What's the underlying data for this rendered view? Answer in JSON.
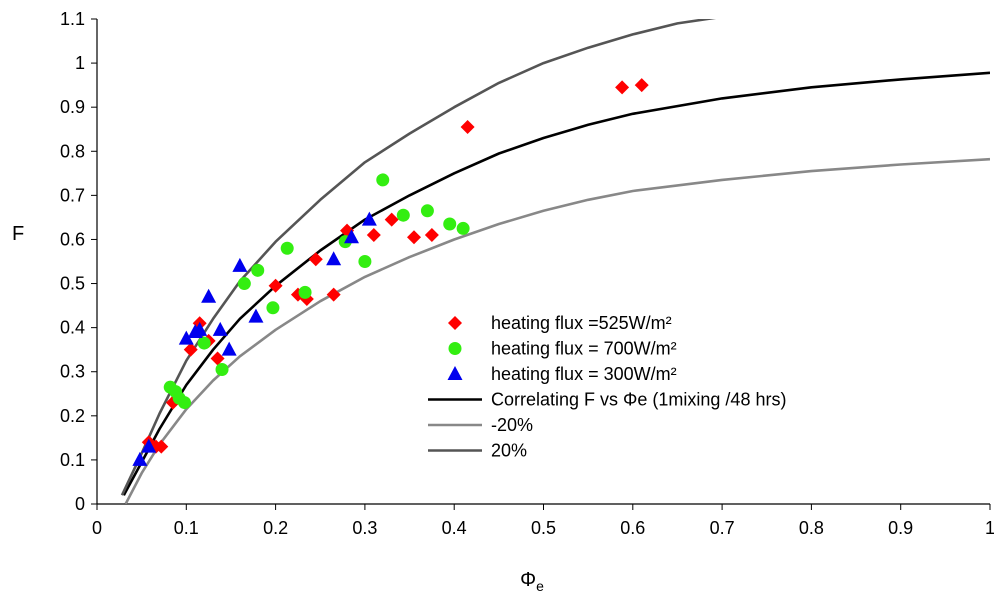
{
  "chart_data": {
    "type": "scatter",
    "title": "",
    "xlabel": "Φ",
    "xlabel_subscript": "e",
    "ylabel": "F",
    "xlim": [
      0,
      1
    ],
    "ylim": [
      0,
      1.1
    ],
    "x_ticks": [
      "0",
      "0.1",
      "0.2",
      "0.3",
      "0.4",
      "0.5",
      "0.6",
      "0.7",
      "0.8",
      "0.9",
      "1"
    ],
    "y_ticks": [
      "0",
      "0.1",
      "0.2",
      "0.3",
      "0.4",
      "0.5",
      "0.6",
      "0.7",
      "0.8",
      "0.9",
      "1",
      "1.1"
    ],
    "grid": false,
    "legend_position": "bottom-right",
    "series": [
      {
        "name": "heating flux =525W/m²",
        "kind": "scatter",
        "marker": "diamond",
        "color": "#ff0000",
        "points": [
          [
            0.058,
            0.14
          ],
          [
            0.066,
            0.13
          ],
          [
            0.072,
            0.13
          ],
          [
            0.085,
            0.23
          ],
          [
            0.09,
            0.24
          ],
          [
            0.105,
            0.35
          ],
          [
            0.115,
            0.41
          ],
          [
            0.125,
            0.37
          ],
          [
            0.135,
            0.33
          ],
          [
            0.2,
            0.495
          ],
          [
            0.225,
            0.475
          ],
          [
            0.235,
            0.465
          ],
          [
            0.245,
            0.555
          ],
          [
            0.265,
            0.475
          ],
          [
            0.28,
            0.62
          ],
          [
            0.31,
            0.61
          ],
          [
            0.33,
            0.645
          ],
          [
            0.355,
            0.605
          ],
          [
            0.375,
            0.61
          ],
          [
            0.415,
            0.855
          ],
          [
            0.588,
            0.945
          ],
          [
            0.61,
            0.95
          ]
        ]
      },
      {
        "name": "heating flux = 700W/m²",
        "kind": "scatter",
        "marker": "circle",
        "color": "#33ee11",
        "points": [
          [
            0.082,
            0.265
          ],
          [
            0.088,
            0.255
          ],
          [
            0.092,
            0.24
          ],
          [
            0.098,
            0.23
          ],
          [
            0.12,
            0.365
          ],
          [
            0.14,
            0.305
          ],
          [
            0.165,
            0.5
          ],
          [
            0.18,
            0.53
          ],
          [
            0.197,
            0.445
          ],
          [
            0.213,
            0.58
          ],
          [
            0.233,
            0.48
          ],
          [
            0.278,
            0.595
          ],
          [
            0.3,
            0.55
          ],
          [
            0.32,
            0.735
          ],
          [
            0.343,
            0.655
          ],
          [
            0.37,
            0.665
          ],
          [
            0.395,
            0.635
          ],
          [
            0.41,
            0.625
          ]
        ]
      },
      {
        "name": "heating flux = 300W/m²",
        "kind": "scatter",
        "marker": "triangle",
        "color": "#0000ee",
        "points": [
          [
            0.048,
            0.1
          ],
          [
            0.058,
            0.13
          ],
          [
            0.1,
            0.375
          ],
          [
            0.11,
            0.39
          ],
          [
            0.115,
            0.395
          ],
          [
            0.125,
            0.47
          ],
          [
            0.138,
            0.395
          ],
          [
            0.148,
            0.35
          ],
          [
            0.16,
            0.54
          ],
          [
            0.178,
            0.425
          ],
          [
            0.265,
            0.555
          ],
          [
            0.285,
            0.605
          ],
          [
            0.305,
            0.645
          ]
        ]
      },
      {
        "name": "Correlating F vs Φe (1mixing /48 hrs)",
        "kind": "line",
        "color": "#000000",
        "points": [
          [
            0.03,
            0.02
          ],
          [
            0.05,
            0.095
          ],
          [
            0.07,
            0.17
          ],
          [
            0.1,
            0.27
          ],
          [
            0.13,
            0.35
          ],
          [
            0.16,
            0.42
          ],
          [
            0.2,
            0.495
          ],
          [
            0.25,
            0.575
          ],
          [
            0.3,
            0.645
          ],
          [
            0.35,
            0.7
          ],
          [
            0.4,
            0.75
          ],
          [
            0.45,
            0.795
          ],
          [
            0.5,
            0.83
          ],
          [
            0.55,
            0.86
          ],
          [
            0.6,
            0.885
          ],
          [
            0.7,
            0.92
          ],
          [
            0.8,
            0.945
          ],
          [
            0.9,
            0.963
          ],
          [
            1.0,
            0.978
          ]
        ]
      },
      {
        "name": "-20%",
        "kind": "line",
        "color": "#888888",
        "points": [
          [
            0.032,
            0.0
          ],
          [
            0.05,
            0.07
          ],
          [
            0.07,
            0.135
          ],
          [
            0.1,
            0.215
          ],
          [
            0.13,
            0.28
          ],
          [
            0.16,
            0.335
          ],
          [
            0.2,
            0.395
          ],
          [
            0.25,
            0.46
          ],
          [
            0.3,
            0.515
          ],
          [
            0.35,
            0.56
          ],
          [
            0.4,
            0.6
          ],
          [
            0.45,
            0.635
          ],
          [
            0.5,
            0.665
          ],
          [
            0.55,
            0.69
          ],
          [
            0.6,
            0.71
          ],
          [
            0.7,
            0.735
          ],
          [
            0.8,
            0.755
          ],
          [
            0.9,
            0.77
          ],
          [
            1.0,
            0.782
          ]
        ]
      },
      {
        "name": "20%",
        "kind": "line",
        "color": "#555555",
        "points": [
          [
            0.028,
            0.02
          ],
          [
            0.05,
            0.115
          ],
          [
            0.07,
            0.205
          ],
          [
            0.1,
            0.325
          ],
          [
            0.13,
            0.42
          ],
          [
            0.16,
            0.505
          ],
          [
            0.2,
            0.595
          ],
          [
            0.25,
            0.69
          ],
          [
            0.3,
            0.775
          ],
          [
            0.35,
            0.84
          ],
          [
            0.4,
            0.9
          ],
          [
            0.45,
            0.955
          ],
          [
            0.5,
            1.0
          ],
          [
            0.55,
            1.035
          ],
          [
            0.6,
            1.065
          ],
          [
            0.65,
            1.09
          ],
          [
            0.7,
            1.105
          ],
          [
            0.73,
            1.115
          ]
        ]
      }
    ]
  }
}
